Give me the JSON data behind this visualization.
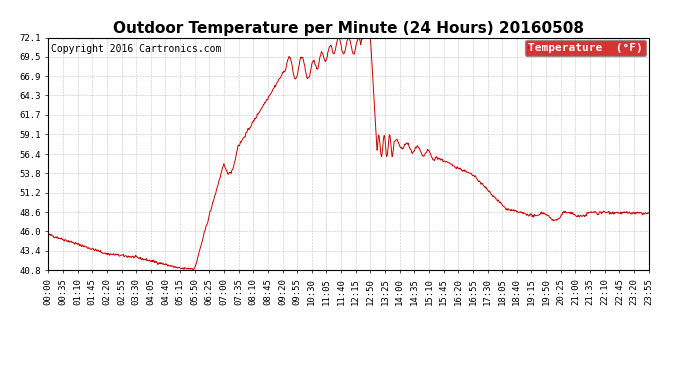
{
  "title": "Outdoor Temperature per Minute (24 Hours) 20160508",
  "copyright": "Copyright 2016 Cartronics.com",
  "legend_label": "Temperature  (°F)",
  "legend_bg": "#cc0000",
  "legend_text_color": "#ffffff",
  "line_color": "#cc0000",
  "background_color": "#ffffff",
  "grid_color": "#aaaaaa",
  "ylim": [
    40.8,
    72.1
  ],
  "yticks": [
    40.8,
    43.4,
    46.0,
    48.6,
    51.2,
    53.8,
    56.4,
    59.1,
    61.7,
    64.3,
    66.9,
    69.5,
    72.1
  ],
  "xtick_labels": [
    "00:00",
    "00:35",
    "01:10",
    "01:45",
    "02:20",
    "02:55",
    "03:30",
    "04:05",
    "04:40",
    "05:15",
    "05:50",
    "06:25",
    "07:00",
    "07:35",
    "08:10",
    "08:45",
    "09:20",
    "09:55",
    "10:30",
    "11:05",
    "11:40",
    "12:15",
    "12:50",
    "13:25",
    "14:00",
    "14:35",
    "15:10",
    "15:45",
    "16:20",
    "16:55",
    "17:30",
    "18:05",
    "18:40",
    "19:15",
    "19:50",
    "20:25",
    "21:00",
    "21:35",
    "22:10",
    "22:45",
    "23:20",
    "23:55"
  ],
  "title_fontsize": 11,
  "copyright_fontsize": 7,
  "tick_fontsize": 6.5,
  "legend_fontsize": 8
}
